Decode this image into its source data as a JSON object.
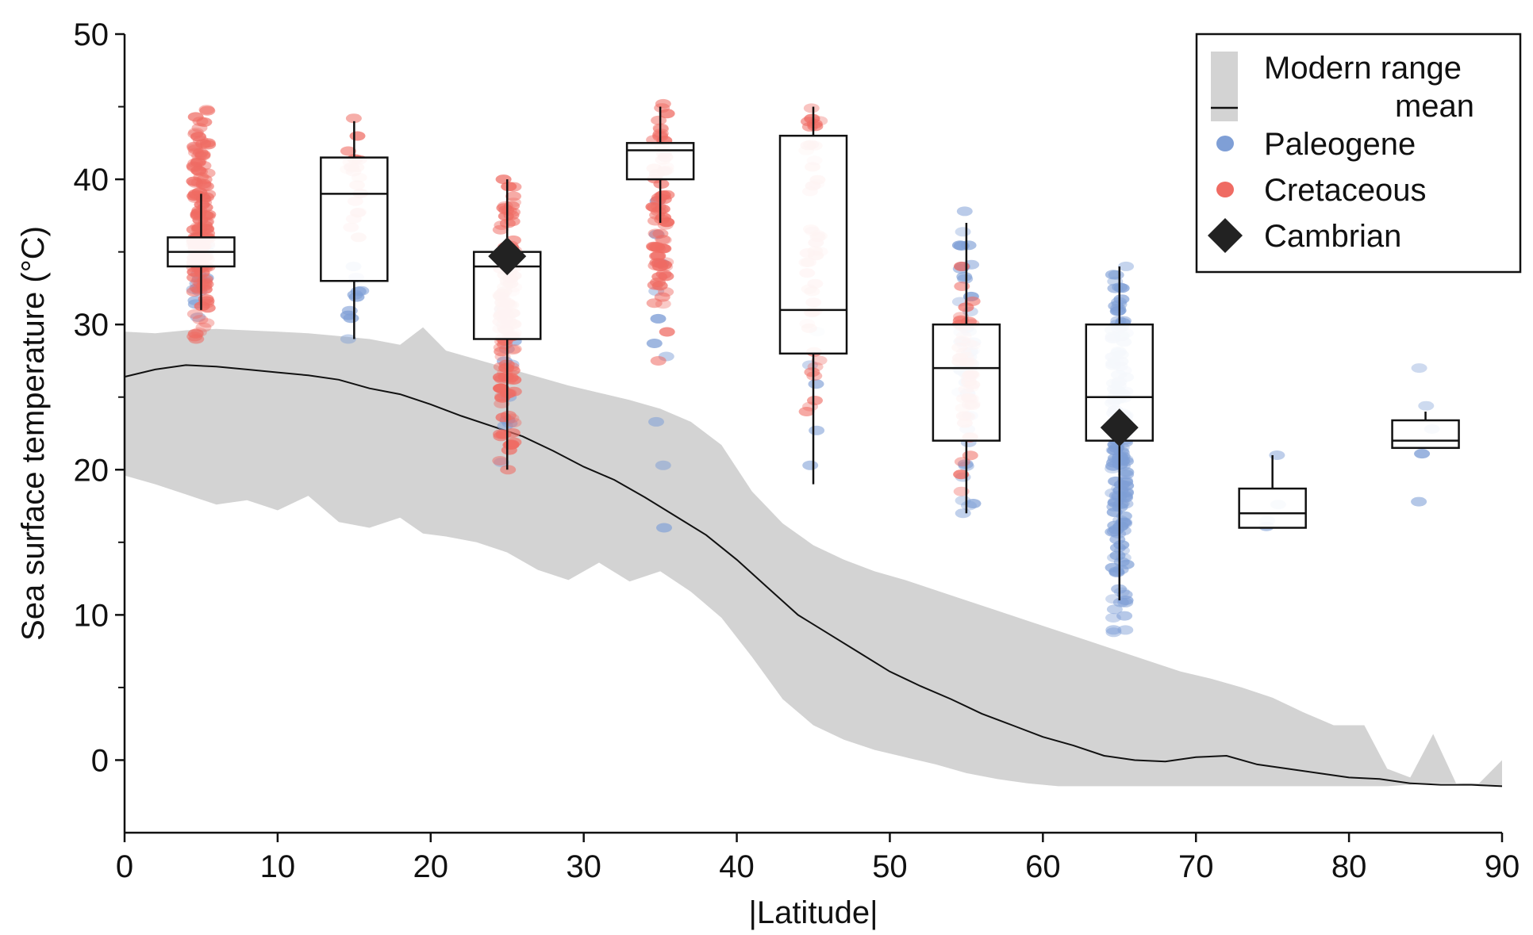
{
  "chart_data": {
    "type": "box",
    "xlabel": "|Latitude|",
    "ylabel": "Sea surface temperature (°C)",
    "xlim": [
      0,
      90
    ],
    "ylim": [
      -5,
      50
    ],
    "xticks": [
      "0",
      "10",
      "20",
      "30",
      "40",
      "50",
      "60",
      "70",
      "80",
      "90"
    ],
    "yticks": [
      "0",
      "10",
      "20",
      "30",
      "40",
      "50"
    ],
    "grid": false,
    "legend": {
      "placement": "top-right",
      "items": [
        {
          "label": "Modern range",
          "swatch": "band",
          "color": "#d3d3d3"
        },
        {
          "label": "mean",
          "swatch": "line",
          "color": "#111111"
        },
        {
          "label": "Paleogene",
          "swatch": "dot",
          "color": "#7f9fd6"
        },
        {
          "label": "Cretaceous",
          "swatch": "dot",
          "color": "#ef6b63"
        },
        {
          "label": "Cambrian",
          "swatch": "diamond",
          "color": "#222222"
        }
      ]
    },
    "colors": {
      "paleogene": "#7f9fd6",
      "cretaceous": "#ef6b63",
      "cambrian": "#222222",
      "modern_band": "#d3d3d3",
      "mean_line": "#111111"
    },
    "modern_range": {
      "x": [
        0,
        2,
        4,
        6,
        8,
        10,
        12,
        14,
        16,
        18,
        19.5,
        21,
        23,
        25,
        27,
        29,
        31,
        33,
        35,
        37,
        39,
        41,
        43,
        45,
        47,
        49,
        51,
        53,
        55,
        57,
        59,
        61,
        63,
        65,
        67,
        69,
        71,
        73,
        75,
        77,
        79,
        81,
        82.5,
        84,
        85.5,
        87,
        88.5,
        90
      ],
      "upper": [
        29.5,
        29.4,
        29.6,
        29.7,
        29.6,
        29.5,
        29.4,
        29.2,
        29.0,
        28.6,
        29.8,
        28.2,
        27.6,
        27.0,
        26.4,
        25.8,
        25.3,
        24.8,
        24.2,
        23.3,
        21.7,
        18.5,
        16.3,
        14.8,
        13.8,
        13.0,
        12.4,
        11.7,
        11.0,
        10.3,
        9.6,
        8.9,
        8.2,
        7.5,
        6.8,
        6.1,
        5.6,
        5.0,
        4.3,
        3.3,
        2.4,
        2.4,
        -0.6,
        -1.2,
        1.8,
        -1.6,
        -1.6,
        0.0
      ],
      "lower": [
        19.6,
        19.0,
        18.3,
        17.6,
        17.9,
        17.2,
        18.2,
        16.4,
        16.0,
        16.7,
        15.6,
        15.4,
        15.0,
        14.3,
        13.1,
        12.4,
        13.6,
        12.3,
        13.0,
        11.6,
        9.8,
        7.1,
        4.2,
        2.4,
        1.4,
        0.7,
        0.2,
        -0.3,
        -0.9,
        -1.3,
        -1.6,
        -1.8,
        -1.8,
        -1.8,
        -1.8,
        -1.8,
        -1.8,
        -1.8,
        -1.8,
        -1.8,
        -1.8,
        -1.8,
        -1.8,
        -1.7,
        -1.6,
        -1.6,
        -1.8,
        -1.8
      ]
    },
    "modern_mean": {
      "x": [
        0,
        2,
        4,
        6,
        8,
        10,
        12,
        14,
        16,
        18,
        20,
        22,
        24,
        26,
        28,
        30,
        32,
        34,
        36,
        38,
        40,
        42,
        44,
        46,
        48,
        50,
        52,
        54,
        56,
        58,
        60,
        62,
        64,
        66,
        68,
        70,
        72,
        74,
        76,
        78,
        80,
        82,
        84,
        86,
        88,
        90
      ],
      "y": [
        26.4,
        26.9,
        27.2,
        27.1,
        26.9,
        26.7,
        26.5,
        26.2,
        25.6,
        25.2,
        24.5,
        23.7,
        23.0,
        22.3,
        21.3,
        20.2,
        19.3,
        18.1,
        16.8,
        15.5,
        13.8,
        11.9,
        10.0,
        8.7,
        7.4,
        6.1,
        5.1,
        4.2,
        3.2,
        2.4,
        1.6,
        1.0,
        0.3,
        0.0,
        -0.1,
        0.2,
        0.3,
        -0.3,
        -0.6,
        -0.9,
        -1.2,
        -1.3,
        -1.6,
        -1.7,
        -1.7,
        -1.8
      ]
    },
    "boxes": [
      {
        "lat": 5,
        "whisker_low": 31,
        "q1": 34,
        "median": 35,
        "q3": 36,
        "whisker_high": 39
      },
      {
        "lat": 15,
        "whisker_low": 29,
        "q1": 33,
        "median": 39,
        "q3": 41.5,
        "whisker_high": 44
      },
      {
        "lat": 25,
        "whisker_low": 20,
        "q1": 29,
        "median": 34,
        "q3": 35,
        "whisker_high": 40
      },
      {
        "lat": 35,
        "whisker_low": 37,
        "q1": 40,
        "median": 42,
        "q3": 42.5,
        "whisker_high": 45
      },
      {
        "lat": 45,
        "whisker_low": 19,
        "q1": 28,
        "median": 31,
        "q3": 43,
        "whisker_high": 45
      },
      {
        "lat": 55,
        "whisker_low": 17,
        "q1": 22,
        "median": 27,
        "q3": 30,
        "whisker_high": 37
      },
      {
        "lat": 65,
        "whisker_low": 11,
        "q1": 22,
        "median": 25,
        "q3": 30,
        "whisker_high": 34
      },
      {
        "lat": 75,
        "whisker_low": 16,
        "q1": 16,
        "median": 17,
        "q3": 18.7,
        "whisker_high": 21
      },
      {
        "lat": 85,
        "whisker_low": 21.5,
        "q1": 21.5,
        "median": 22,
        "q3": 23.4,
        "whisker_high": 24
      }
    ],
    "cambrian": [
      {
        "lat": 25,
        "value": 34.7
      },
      {
        "lat": 65,
        "value": 22.9
      }
    ],
    "cretaceous_points": [
      {
        "lat": 5,
        "min": 29,
        "max": 44.8,
        "n": 140
      },
      {
        "lat": 15,
        "min": 36,
        "max": 44.2,
        "n": 18
      },
      {
        "lat": 25,
        "min": 20,
        "max": 40,
        "n": 120
      },
      {
        "lat": 35,
        "min": 27.5,
        "max": 45.2,
        "n": 70
      },
      {
        "lat": 45,
        "min": 24,
        "max": 44.9,
        "n": 45
      },
      {
        "lat": 55,
        "min": 18.5,
        "max": 34,
        "n": 45
      }
    ],
    "paleogene_points": [
      {
        "lat": 5,
        "min": 30.5,
        "max": 36,
        "n": 15
      },
      {
        "lat": 15,
        "min": 29,
        "max": 34,
        "n": 8
      },
      {
        "lat": 25,
        "min": 20.5,
        "max": 32,
        "n": 12
      },
      {
        "lat": 35,
        "values": [
          16,
          20.3,
          23.3,
          27.8,
          28.7,
          30.4,
          32.3,
          34.2,
          36.2,
          38.5
        ]
      },
      {
        "lat": 45,
        "values": [
          20.3,
          22.7,
          25.9,
          27.2,
          29.5
        ]
      },
      {
        "lat": 55,
        "min": 17,
        "max": 37.8,
        "n": 45
      },
      {
        "lat": 65,
        "min": 8.8,
        "max": 34,
        "n": 170
      },
      {
        "lat": 75,
        "values": [
          16.1,
          16.5,
          17.6,
          21
        ]
      },
      {
        "lat": 85,
        "values": [
          17.8,
          21.1,
          22.8,
          24.4,
          27
        ]
      }
    ]
  }
}
